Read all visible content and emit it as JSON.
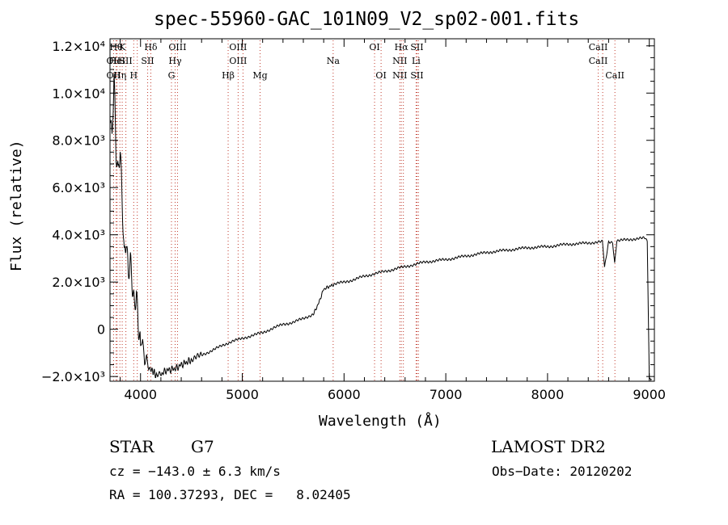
{
  "chart_data": {
    "type": "line",
    "title": "spec-55960-GAC_101N09_V2_sp02-001.fits",
    "xlabel": "Wavelength (Å)",
    "ylabel": "Flux (relative)",
    "xlim": [
      3700,
      9050
    ],
    "ylim": [
      -2200,
      12300
    ],
    "x_ticks": [
      4000,
      5000,
      6000,
      7000,
      8000,
      9000
    ],
    "y_ticks": [
      {
        "value": -2000,
        "label": "−2.0×10³"
      },
      {
        "value": 0,
        "label": "0"
      },
      {
        "value": 2000,
        "label": "2.0×10³"
      },
      {
        "value": 4000,
        "label": "4.0×10³"
      },
      {
        "value": 6000,
        "label": "6.0×10³"
      },
      {
        "value": 8000,
        "label": "8.0×10³"
      },
      {
        "value": 10000,
        "label": "1.0×10⁴"
      },
      {
        "value": 12000,
        "label": "1.2×10⁴"
      }
    ],
    "grid": false,
    "series": [
      {
        "x": [
          3700,
          3720,
          3740,
          3760,
          3780,
          3800,
          3820,
          3840,
          3860,
          3880,
          3900,
          3920,
          3940,
          3960,
          3980,
          4000,
          4020,
          4040,
          4060,
          4080,
          4100,
          4130,
          4160,
          4200,
          4250,
          4300,
          4350,
          4400,
          4450,
          4500,
          4600,
          4700,
          4800,
          4900,
          5000,
          5100,
          5200,
          5300,
          5400,
          5500,
          5600,
          5700,
          5750,
          5800,
          5850,
          5900,
          6000,
          6100,
          6200,
          6300,
          6400,
          6500,
          6600,
          6700,
          6800,
          6900,
          7000,
          7200,
          7400,
          7600,
          7800,
          8000,
          8200,
          8400,
          8500,
          8540,
          8560,
          8600,
          8640,
          8660,
          8680,
          8700,
          8800,
          8900,
          8960,
          8980,
          9000,
          9020
        ],
        "y": [
          9500,
          8000,
          10600,
          7200,
          6300,
          7500,
          5400,
          3200,
          4100,
          2600,
          3100,
          1800,
          800,
          1200,
          -200,
          -800,
          -400,
          -1400,
          -1100,
          -1600,
          -1700,
          -1800,
          -2000,
          -1900,
          -1750,
          -1700,
          -1650,
          -1500,
          -1400,
          -1300,
          -1100,
          -900,
          -700,
          -500,
          -400,
          -250,
          -150,
          50,
          200,
          300,
          450,
          650,
          1100,
          1700,
          1800,
          1900,
          2000,
          2100,
          2250,
          2350,
          2450,
          2550,
          2650,
          2750,
          2850,
          2900,
          2950,
          3100,
          3250,
          3350,
          3450,
          3500,
          3600,
          3650,
          3700,
          3700,
          2600,
          3700,
          3700,
          2800,
          3750,
          3750,
          3800,
          3850,
          3850,
          3700,
          -2100,
          -2100
        ]
      }
    ],
    "lines": [
      {
        "x": 3735,
        "labels": [
          {
            "row": 1,
            "text": "OII"
          },
          {
            "row": 2,
            "text": "OII"
          }
        ]
      },
      {
        "x": 3760,
        "labels": [
          {
            "row": 0,
            "text": "Hθ"
          }
        ]
      },
      {
        "x": 3770,
        "labels": [
          {
            "row": 1,
            "text": "HeI"
          }
        ]
      },
      {
        "x": 3797,
        "labels": [
          {
            "row": 2,
            "text": "Hη"
          }
        ]
      },
      {
        "x": 3820,
        "labels": [
          {
            "row": 0,
            "text": "K"
          }
        ]
      },
      {
        "x": 3856,
        "labels": [
          {
            "row": 1,
            "text": "SII"
          }
        ]
      },
      {
        "x": 3933,
        "labels": [
          {
            "row": 2,
            "text": "H"
          }
        ]
      },
      {
        "x": 3968,
        "labels": []
      },
      {
        "x": 4070,
        "labels": [
          {
            "row": 1,
            "text": "SII"
          }
        ]
      },
      {
        "x": 4101,
        "labels": [
          {
            "row": 0,
            "text": "Hδ"
          }
        ]
      },
      {
        "x": 4304,
        "labels": [
          {
            "row": 2,
            "text": "G"
          }
        ]
      },
      {
        "x": 4340,
        "labels": [
          {
            "row": 1,
            "text": "Hγ"
          }
        ]
      },
      {
        "x": 4363,
        "labels": [
          {
            "row": 0,
            "text": "OIII"
          }
        ]
      },
      {
        "x": 4861,
        "labels": [
          {
            "row": 2,
            "text": "Hβ"
          }
        ]
      },
      {
        "x": 4959,
        "labels": [
          {
            "row": 0,
            "text": "OIII"
          },
          {
            "row": 1,
            "text": "OIII"
          }
        ]
      },
      {
        "x": 5007,
        "labels": []
      },
      {
        "x": 5175,
        "labels": [
          {
            "row": 2,
            "text": "Mg"
          }
        ]
      },
      {
        "x": 5893,
        "labels": [
          {
            "row": 1,
            "text": "Na"
          }
        ]
      },
      {
        "x": 6300,
        "labels": [
          {
            "row": 0,
            "text": "OI"
          }
        ]
      },
      {
        "x": 6364,
        "labels": [
          {
            "row": 2,
            "text": "OI"
          }
        ]
      },
      {
        "x": 6548,
        "labels": [
          {
            "row": 1,
            "text": "NII"
          },
          {
            "row": 2,
            "text": "NII"
          }
        ]
      },
      {
        "x": 6563,
        "labels": [
          {
            "row": 0,
            "text": "Hα"
          }
        ]
      },
      {
        "x": 6583,
        "labels": []
      },
      {
        "x": 6708,
        "labels": [
          {
            "row": 1,
            "text": "Li"
          }
        ]
      },
      {
        "x": 6717,
        "labels": [
          {
            "row": 0,
            "text": "SII"
          },
          {
            "row": 2,
            "text": "SII"
          }
        ]
      },
      {
        "x": 6731,
        "labels": []
      },
      {
        "x": 8498,
        "labels": [
          {
            "row": 0,
            "text": "CaII"
          },
          {
            "row": 1,
            "text": "CaII"
          }
        ]
      },
      {
        "x": 8542,
        "labels": []
      },
      {
        "x": 8662,
        "labels": [
          {
            "row": 2,
            "text": "CaII"
          }
        ]
      }
    ]
  },
  "info": {
    "object": "STAR",
    "subclass": "G7",
    "survey": "LAMOST DR2",
    "cz": "cz = −143.0 ± 6.3 km/s",
    "obs_date": "Obs−Date: 20120202",
    "coords": "RA = 100.37293, DEC =   8.02405"
  }
}
